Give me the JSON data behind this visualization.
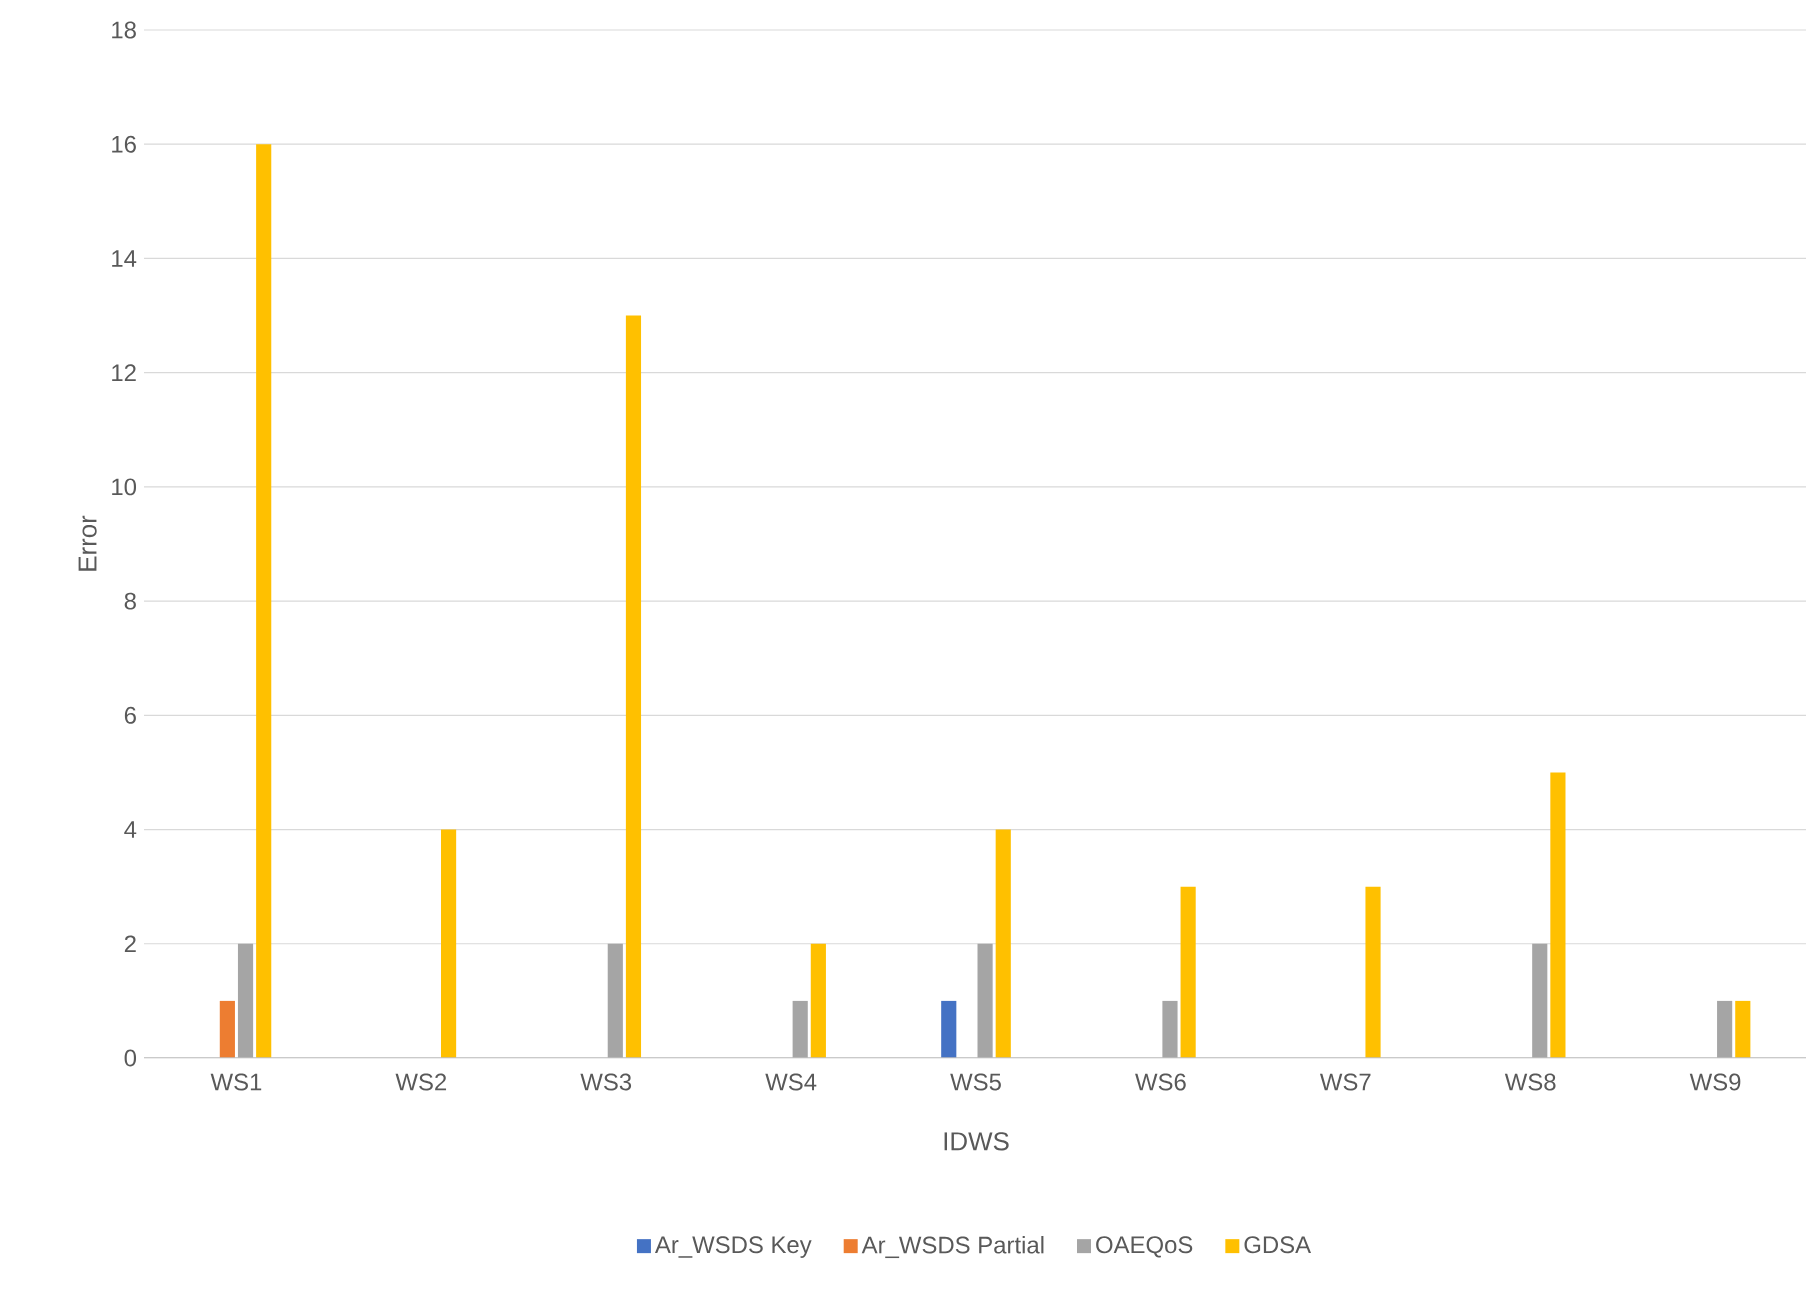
{
  "chart_data": {
    "type": "bar",
    "xlabel": "IDWS",
    "ylabel": "Error",
    "categories": [
      "WS1",
      "WS2",
      "WS3",
      "WS4",
      "WS5",
      "WS6",
      "WS7",
      "WS8",
      "WS9"
    ],
    "series": [
      {
        "name": "Ar_WSDS Key",
        "color": "#4472c4",
        "values": [
          0,
          0,
          0,
          0,
          1,
          0,
          0,
          0,
          0
        ]
      },
      {
        "name": "Ar_WSDS Partial",
        "color": "#ed7d31",
        "values": [
          1,
          0,
          0,
          0,
          0,
          0,
          0,
          0,
          0
        ]
      },
      {
        "name": "OAEQoS",
        "color": "#a5a5a5",
        "values": [
          2,
          0,
          2,
          1,
          2,
          1,
          0,
          2,
          1
        ]
      },
      {
        "name": "GDSA",
        "color": "#ffc000",
        "values": [
          16,
          4,
          13,
          2,
          4,
          3,
          3,
          5,
          1
        ]
      }
    ],
    "ylim": [
      0,
      18
    ],
    "yticks": [
      0,
      2,
      4,
      6,
      8,
      10,
      12,
      14,
      16,
      18
    ],
    "grid": "y",
    "legend": "bottom"
  }
}
